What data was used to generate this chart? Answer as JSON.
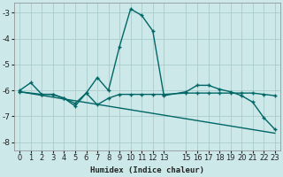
{
  "xlabel": "Humidex (Indice chaleur)",
  "ylabel": "",
  "background_color": "#cce8e8",
  "grid_color": "#aacccc",
  "line_color": "#006666",
  "xlim": [
    -0.5,
    23.5
  ],
  "ylim": [
    -8.3,
    -2.6
  ],
  "yticks": [
    -8,
    -7,
    -6,
    -5,
    -4,
    -3
  ],
  "xticks": [
    0,
    1,
    2,
    3,
    4,
    5,
    6,
    7,
    8,
    9,
    10,
    11,
    12,
    13,
    15,
    16,
    17,
    18,
    19,
    20,
    21,
    22,
    23
  ],
  "series1_x": [
    0,
    1,
    2,
    3,
    4,
    5,
    6,
    7,
    8,
    9,
    10,
    11,
    12,
    13,
    15,
    16,
    17,
    18,
    19,
    20,
    21,
    22,
    23
  ],
  "series1_y": [
    -6.0,
    -5.7,
    -6.15,
    -6.15,
    -6.3,
    -6.6,
    -6.1,
    -5.5,
    -6.0,
    -4.3,
    -2.85,
    -3.1,
    -3.7,
    -6.2,
    -6.05,
    -5.8,
    -5.8,
    -5.95,
    -6.05,
    -6.2,
    -6.45,
    -7.05,
    -7.5
  ],
  "series2_x": [
    0,
    2,
    3,
    4,
    5,
    6,
    7,
    8,
    9,
    10,
    11,
    12,
    13,
    15,
    16,
    17,
    18,
    19,
    20,
    21,
    22,
    23
  ],
  "series2_y": [
    -6.05,
    -6.15,
    -6.15,
    -6.3,
    -6.5,
    -6.1,
    -6.55,
    -6.3,
    -6.15,
    -6.15,
    -6.15,
    -6.15,
    -6.15,
    -6.1,
    -6.1,
    -6.1,
    -6.1,
    -6.1,
    -6.1,
    -6.1,
    -6.15,
    -6.2
  ],
  "series3_x": [
    0,
    23
  ],
  "series3_y": [
    -6.05,
    -7.65
  ]
}
